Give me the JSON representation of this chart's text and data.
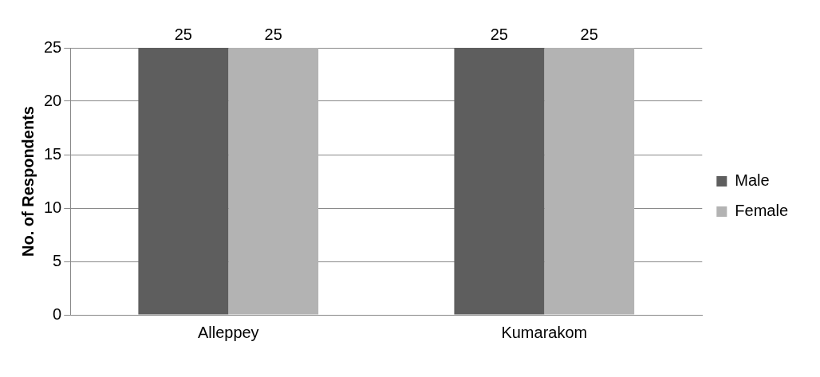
{
  "chart_data": {
    "type": "bar",
    "ylabel": "No. of Respondents",
    "categories": [
      "Alleppey",
      "Kumarakom"
    ],
    "series": [
      {
        "name": "Male",
        "color": "#5e5e5e",
        "values": [
          25,
          25
        ]
      },
      {
        "name": "Female",
        "color": "#b3b3b3",
        "values": [
          25,
          25
        ]
      }
    ],
    "ylim": [
      0,
      25
    ],
    "yticks": [
      0,
      5,
      10,
      15,
      20,
      25
    ],
    "grid": "y",
    "legend": "right",
    "data_labels": true
  }
}
